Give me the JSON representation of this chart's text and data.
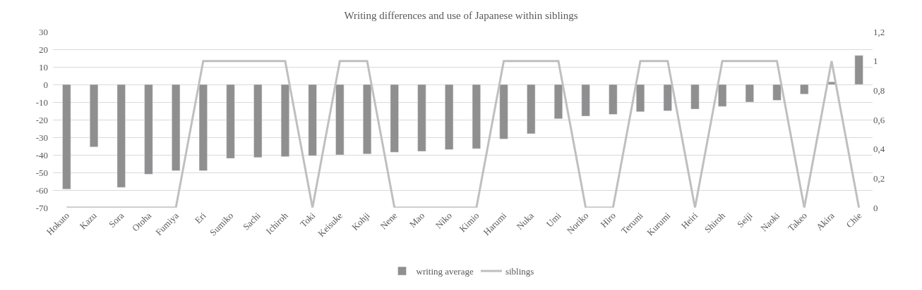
{
  "chart_data": {
    "type": "bar",
    "title": "Writing differences and use of Japanese within siblings",
    "categories": [
      "Hokuto",
      "Kazu",
      "Sora",
      "Otoha",
      "Fumiya",
      "Eri",
      "Sumiko",
      "Sachi",
      "Ichiroh",
      "Toki",
      "Keisuke",
      "Kohji",
      "Nene",
      "Mao",
      "Niko",
      "Kimio",
      "Harumi",
      "Nuka",
      "Umi",
      "Noriko",
      "Hiro",
      "Terumi",
      "Kurumi",
      "Heiri",
      "Shiroh",
      "Seiji",
      "Naoki",
      "Takeo",
      "Akira",
      "Chie"
    ],
    "series": [
      {
        "name": "writing average",
        "color": "#8f8f8f",
        "values": [
          -59.5,
          -35.5,
          -58.5,
          -51,
          -49,
          -49,
          -42,
          -41.5,
          -41,
          -40.5,
          -40,
          -39.5,
          -38.5,
          -38,
          -37,
          -36.5,
          -31,
          -28,
          -19.5,
          -18,
          -17,
          -15.5,
          -15,
          -14,
          -12.5,
          -10,
          -9,
          -5.5,
          1.5,
          16.5
        ]
      },
      {
        "name": "siblings",
        "type": "line",
        "axis": "y2",
        "color": "#bfbfbf",
        "marker": "none",
        "values": [
          0,
          0,
          0,
          0,
          0,
          1,
          1,
          1,
          1,
          0,
          1,
          1,
          0,
          0,
          0,
          0,
          1,
          1,
          1,
          0,
          0,
          1,
          1,
          0,
          1,
          1,
          1,
          0,
          1,
          0
        ]
      }
    ],
    "ylim": [
      -70,
      30
    ],
    "yticks": [
      -70,
      -60,
      -50,
      -40,
      -30,
      -20,
      -10,
      0,
      10,
      20,
      30
    ],
    "y2lim": [
      0,
      1.2
    ],
    "y2ticks": [
      0,
      {
        "value": 0.2,
        "label": "0,2"
      },
      {
        "value": 0.4,
        "label": "0,4"
      },
      {
        "value": 0.6,
        "label": "0,6"
      },
      {
        "value": 0.8,
        "label": "0,8"
      },
      1,
      {
        "value": 1.2,
        "label": "1,2"
      }
    ],
    "grid": "y",
    "legend": "bottom"
  }
}
